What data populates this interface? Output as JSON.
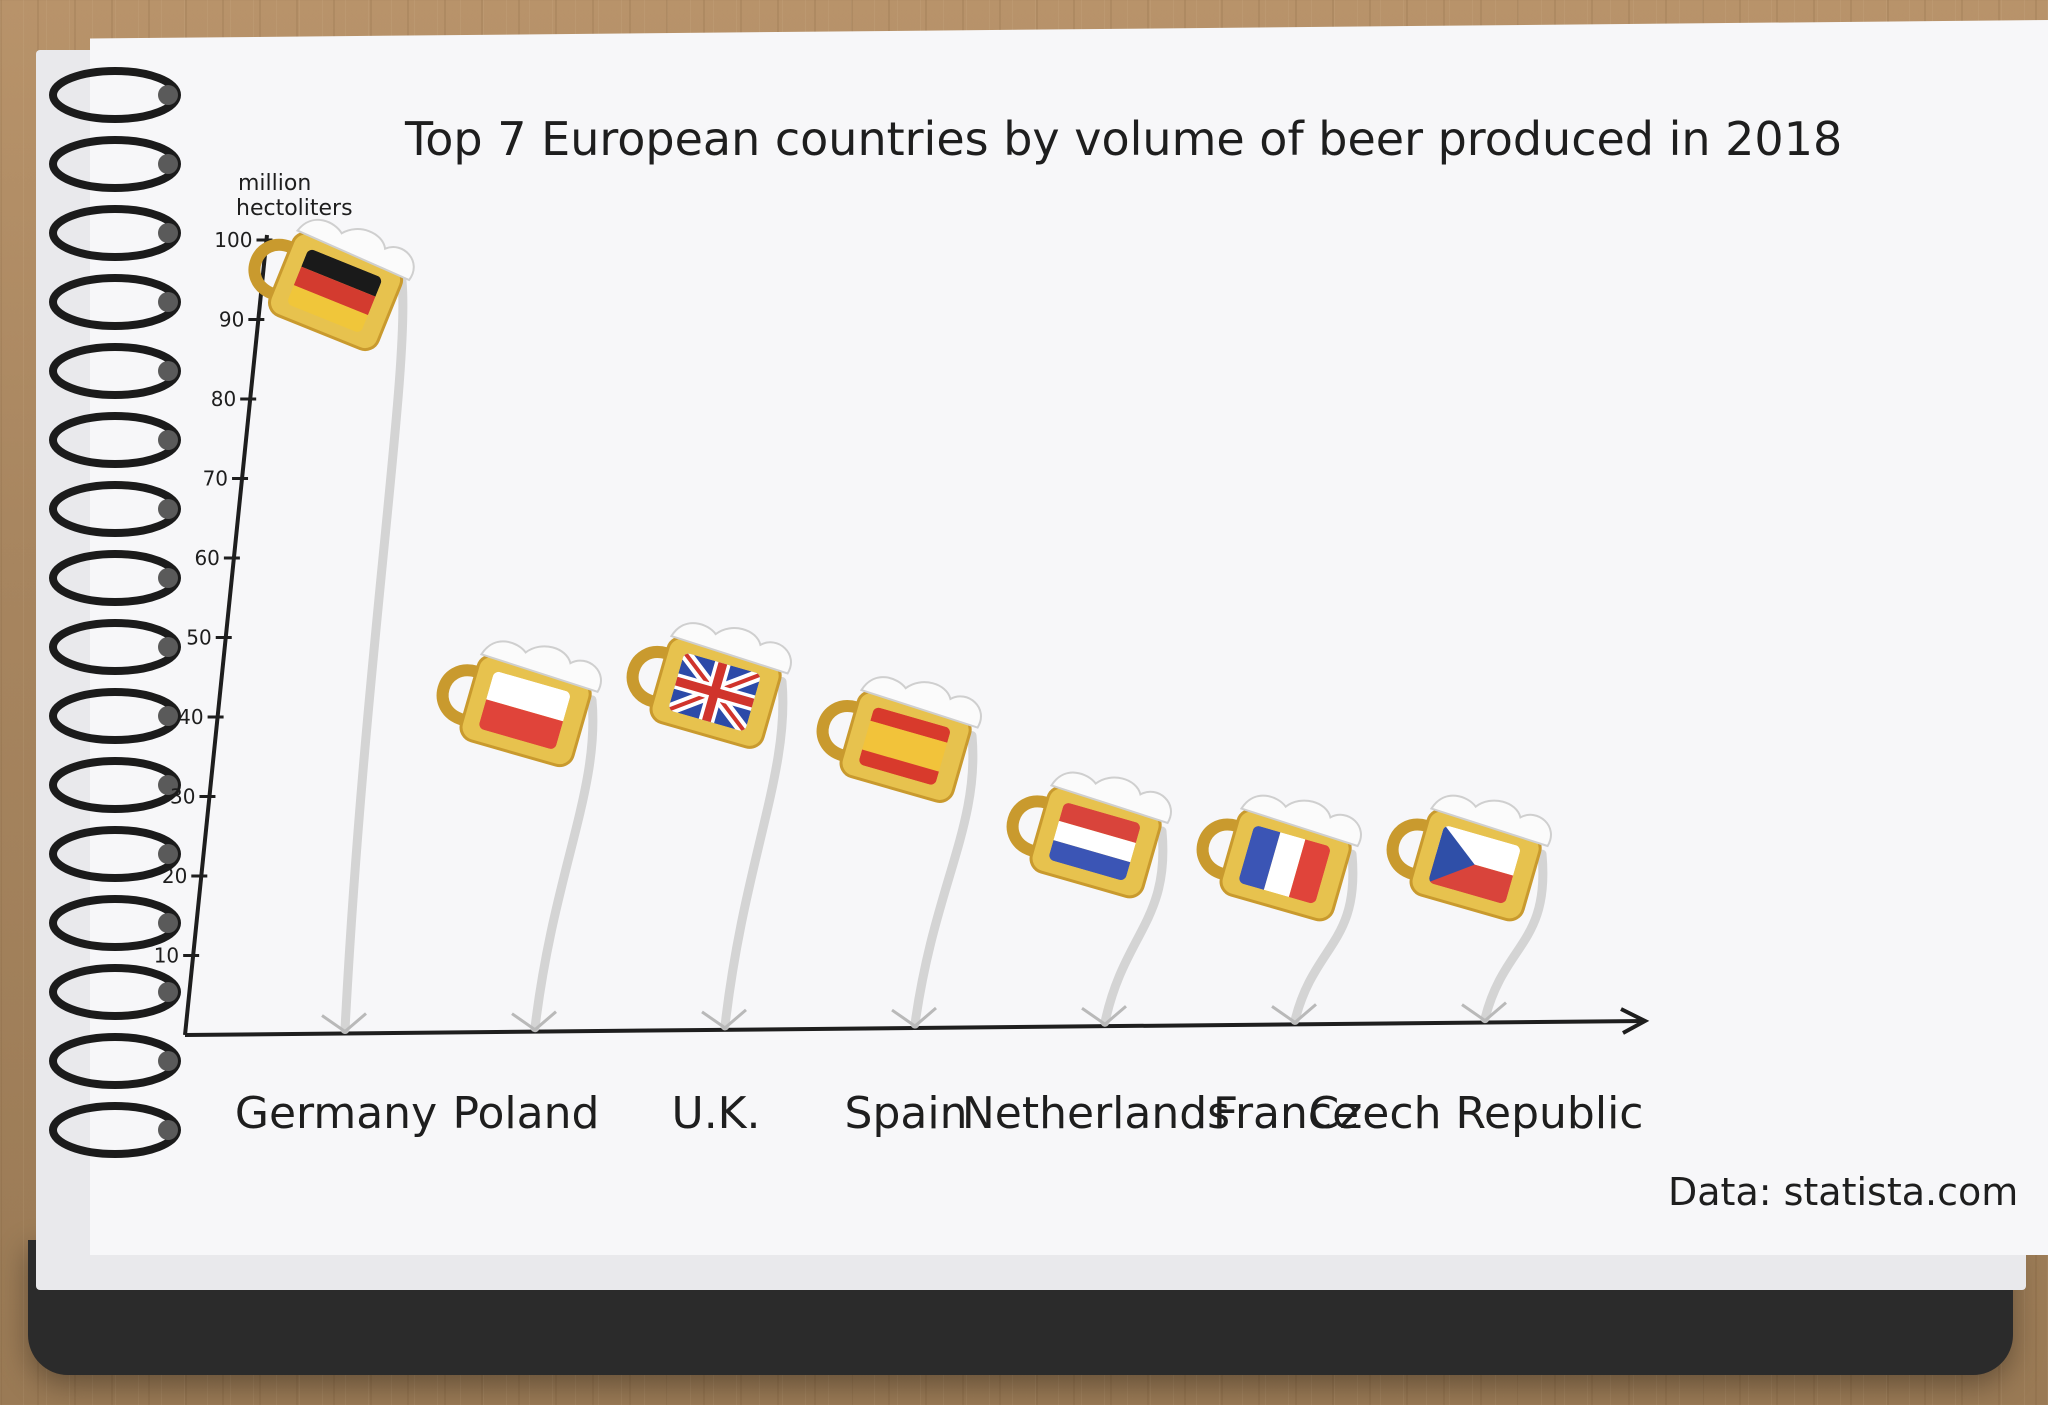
{
  "chart_data": {
    "type": "bar",
    "title": "Top 7 European countries by volume of beer produced in 2018",
    "ylabel": "million hectoliters",
    "xlabel": "",
    "categories": [
      "Germany",
      "Poland",
      "U.K.",
      "Spain",
      "Netherlands",
      "France",
      "Czech Republic"
    ],
    "values": [
      93.6,
      40.9,
      43.2,
      36.4,
      24.4,
      21.5,
      21.5
    ],
    "ylim": [
      0,
      100
    ],
    "yticks": [
      10,
      20,
      30,
      40,
      50,
      60,
      70,
      80,
      90,
      100
    ],
    "grid": false,
    "legend": "none",
    "source": "Data: statista.com",
    "flag_icons": [
      "germany-flag",
      "poland-flag",
      "uk-flag",
      "spain-flag",
      "netherlands-flag",
      "france-flag",
      "czech-flag"
    ]
  },
  "colors": {
    "ink": "#1e1e1e",
    "beer": "#e7c24e",
    "beer_dark": "#c99a2e",
    "foam": "#fbfbfb",
    "pour_stream": "#cfcfcf",
    "paper": "#f7f7f9",
    "ring": "#1b1b1b"
  }
}
